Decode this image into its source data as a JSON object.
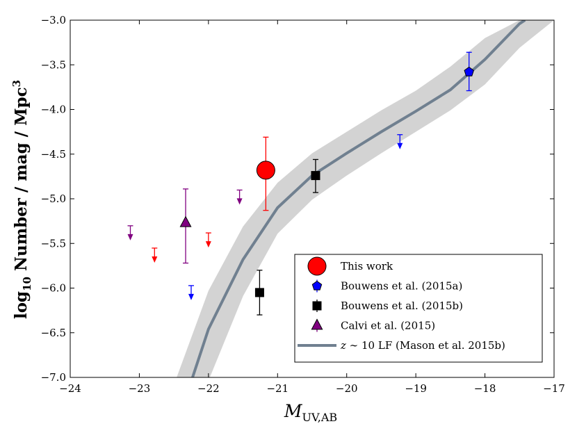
{
  "chart_data": {
    "type": "scatter",
    "xlabel_main": "M",
    "xlabel_sub": "UV,AB",
    "ylabel_main": "log",
    "ylabel_sub": "10",
    "ylabel_rest": " Number / mag / Mpc",
    "ylabel_sup": "3",
    "xlim": [
      -24,
      -17
    ],
    "ylim": [
      -7.0,
      -3.0
    ],
    "x_ticks": [
      -24,
      -23,
      -22,
      -21,
      -20,
      -19,
      -18,
      -17
    ],
    "x_tick_labels": [
      "−24",
      "−23",
      "−22",
      "−21",
      "−20",
      "−19",
      "−18",
      "−17"
    ],
    "y_ticks": [
      -7.0,
      -6.5,
      -6.0,
      -5.5,
      -5.0,
      -4.5,
      -4.0,
      -3.5,
      -3.0
    ],
    "y_tick_labels": [
      "−7.0",
      "−6.5",
      "−6.0",
      "−5.5",
      "−5.0",
      "−4.5",
      "−4.0",
      "−3.5",
      "−3.0"
    ],
    "grid": false,
    "legend_position": "bottom-right",
    "legend": [
      {
        "label": "This work",
        "marker": "circle",
        "color": "#ff0000"
      },
      {
        "label": "Bouwens et al. (2015a)",
        "marker": "pentagon",
        "color": "#0000ff"
      },
      {
        "label": "Bouwens et al. (2015b)",
        "marker": "square",
        "color": "#000000"
      },
      {
        "label": "Calvi et al. (2015)",
        "marker": "triangle",
        "color": "#800080"
      },
      {
        "label_prefix": "z",
        "label_mid": " ∼ 10 LF (Mason et al. 2015b)",
        "marker": "line",
        "color": "#708090"
      }
    ],
    "series": [
      {
        "name": "This work",
        "color": "#ff0000",
        "marker": "circle",
        "points": [
          {
            "x": -21.17,
            "y": -4.68,
            "yerr_lo": -5.13,
            "yerr_hi": -4.31
          }
        ],
        "upper_limits": [
          {
            "x": -22.78,
            "y": -5.7
          },
          {
            "x": -22.0,
            "y": -5.53
          }
        ]
      },
      {
        "name": "Bouwens et al. (2015a)",
        "color": "#0000ff",
        "marker": "pentagon",
        "points": [
          {
            "x": -18.23,
            "y": -3.58,
            "yerr_lo": -3.79,
            "yerr_hi": -3.36
          }
        ],
        "upper_limits": [
          {
            "x": -22.25,
            "y": -6.12
          },
          {
            "x": -19.23,
            "y": -4.43
          }
        ]
      },
      {
        "name": "Bouwens et al. (2015b)",
        "color": "#000000",
        "marker": "square",
        "points": [
          {
            "x": -20.45,
            "y": -4.74,
            "yerr_lo": -4.93,
            "yerr_hi": -4.56
          },
          {
            "x": -21.26,
            "y": -6.05,
            "yerr_lo": -6.3,
            "yerr_hi": -5.8
          }
        ],
        "upper_limits": []
      },
      {
        "name": "Calvi et al. (2015)",
        "color": "#800080",
        "marker": "triangle",
        "points": [
          {
            "x": -22.33,
            "y": -5.27,
            "yerr_lo": -5.72,
            "yerr_hi": -4.89
          }
        ],
        "upper_limits": [
          {
            "x": -23.13,
            "y": -5.45
          },
          {
            "x": -21.55,
            "y": -5.05
          }
        ]
      }
    ],
    "lf_curve": {
      "color": "#708090",
      "band_color": "#d3d3d3",
      "x": [
        -22.23,
        -22.0,
        -21.5,
        -21.0,
        -20.5,
        -20.0,
        -19.5,
        -19.0,
        -18.5,
        -18.0,
        -17.5,
        -17.42
      ],
      "y": [
        -7.0,
        -6.46,
        -5.68,
        -5.1,
        -4.74,
        -4.49,
        -4.25,
        -4.02,
        -3.78,
        -3.44,
        -3.04,
        -3.0
      ],
      "band_lower_x": [
        -22.46,
        -22.0,
        -21.5,
        -21.0,
        -20.5,
        -20.0,
        -19.5,
        -19.0,
        -18.5,
        -18.0,
        -17.5,
        -17.0
      ],
      "band_lower_y": [
        -7.0,
        -6.03,
        -5.31,
        -4.82,
        -4.49,
        -4.25,
        -4.01,
        -3.79,
        -3.52,
        -3.2,
        -3.0,
        -3.0
      ],
      "band_upper_x": [
        -21.98,
        -21.5,
        -21.0,
        -20.5,
        -20.0,
        -19.5,
        -19.0,
        -18.5,
        -18.0,
        -17.5,
        -17.0,
        -17.0
      ],
      "band_upper_y": [
        -7.0,
        -6.09,
        -5.39,
        -5.01,
        -4.74,
        -4.49,
        -4.25,
        -4.01,
        -3.72,
        -3.31,
        -3.0,
        -3.0
      ]
    }
  }
}
